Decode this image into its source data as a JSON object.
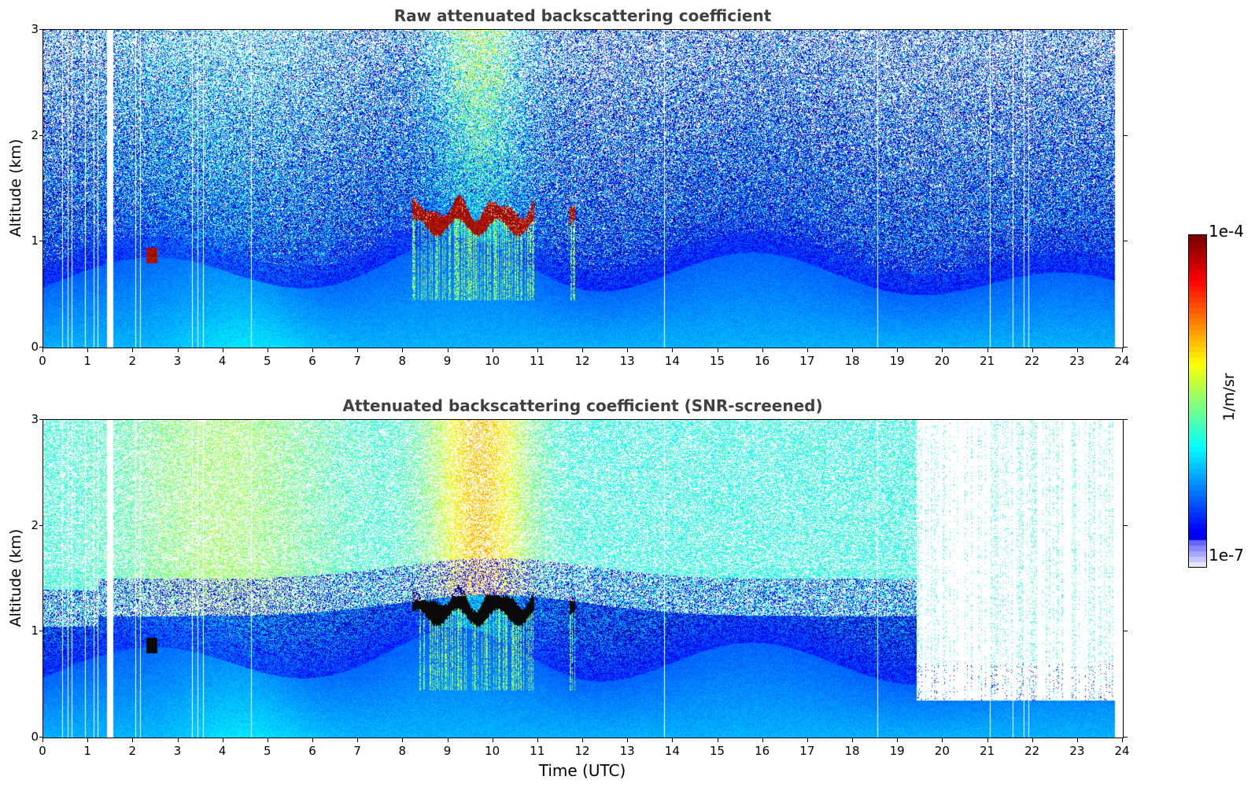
{
  "chart_data": [
    {
      "type": "heatmap",
      "title": "Raw attenuated backscattering coefficient",
      "xlabel": "",
      "ylabel": "Altitude (km)",
      "xlim": [
        0,
        24
      ],
      "ylim": [
        0,
        3
      ],
      "xticks": [
        "0",
        "1",
        "2",
        "3",
        "4",
        "5",
        "6",
        "7",
        "8",
        "9",
        "10",
        "11",
        "12",
        "13",
        "14",
        "15",
        "16",
        "17",
        "18",
        "19",
        "20",
        "21",
        "22",
        "23",
        "24"
      ],
      "yticks": [
        "0",
        "1",
        "2",
        "3"
      ],
      "features": {
        "cloud_base_km": 1.2,
        "cloud_time_utc": [
          8.2,
          11.0
        ],
        "small_cloud_time_utc": 2.4,
        "small_cloud_alt_km": 0.9,
        "boundary_layer_top_km": 0.9
      }
    },
    {
      "type": "heatmap",
      "title": "Attenuated backscattering coefficient (SNR-screened)",
      "xlabel": "Time (UTC)",
      "ylabel": "Altitude (km)",
      "xlim": [
        0,
        24
      ],
      "ylim": [
        0,
        3
      ],
      "xticks": [
        "0",
        "1",
        "2",
        "3",
        "4",
        "5",
        "6",
        "7",
        "8",
        "9",
        "10",
        "11",
        "12",
        "13",
        "14",
        "15",
        "16",
        "17",
        "18",
        "19",
        "20",
        "21",
        "22",
        "23",
        "24"
      ],
      "yticks": [
        "0",
        "1",
        "2",
        "3"
      ],
      "features": {
        "cloud_base_km": 1.2,
        "cloud_time_utc": [
          8.2,
          11.0
        ],
        "screened_layer_top_km": 1.3
      }
    }
  ],
  "colorbar": {
    "max_label": "1e-4",
    "min_label": "1e-7",
    "unit": "1/m/sr",
    "colormap": "jet",
    "scale": "log"
  }
}
